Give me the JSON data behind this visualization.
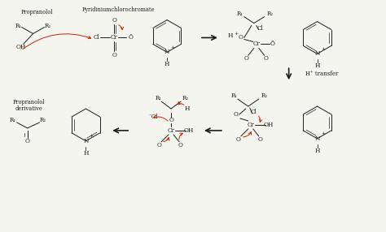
{
  "bg_color": "#f5f5f0",
  "text_color": "#1a1a1a",
  "arrow_color": "#cc2200",
  "bond_color": "#1a1a1a",
  "fig_width": 4.74,
  "fig_height": 2.86,
  "dpi": 100,
  "xlim": [
    0,
    47.4
  ],
  "ylim": [
    0,
    28.6
  ]
}
